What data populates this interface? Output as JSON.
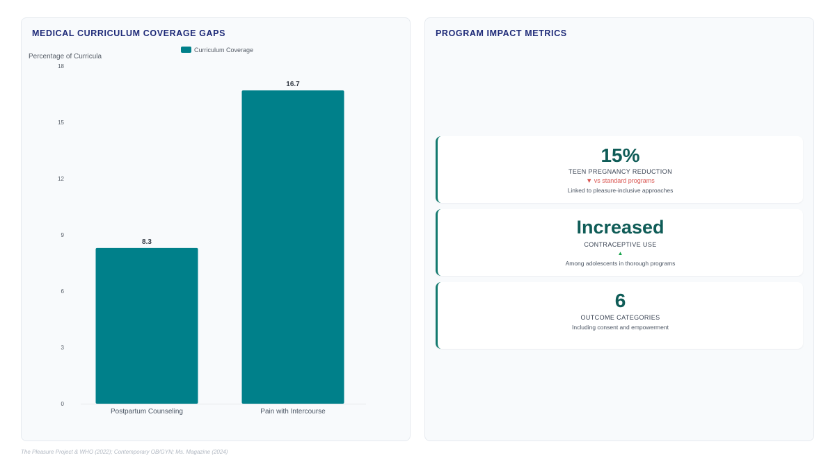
{
  "left_panel": {
    "title": "MEDICAL CURRICULUM COVERAGE GAPS"
  },
  "right_panel": {
    "title": "PROGRAM IMPACT METRICS",
    "cards": [
      {
        "value": "15%",
        "label": "TEEN PREGNANCY REDUCTION",
        "trend_icon": "▼",
        "trend_text": "vs standard programs",
        "trend_direction": "down",
        "note": "Linked to pleasure-inclusive approaches"
      },
      {
        "value": "Increased",
        "label": "CONTRACEPTIVE USE",
        "trend_icon": "▲",
        "trend_text": "",
        "trend_direction": "up",
        "note": "Among adolescents in thorough programs"
      },
      {
        "value": "6",
        "label": "OUTCOME CATEGORIES",
        "note": "Including consent and empowerment"
      }
    ]
  },
  "footer": {
    "source": "The Pleasure Project & WHO (2022); Contemporary OB/GYN; Ms. Magazine (2024)"
  },
  "colors": {
    "bar": "#00808a",
    "title": "#1e2a78",
    "metric_value": "#0f5c57",
    "trend_down": "#d9534f",
    "trend_up": "#16a34a"
  },
  "chart_data": {
    "type": "bar",
    "categories": [
      "Postpartum Counseling",
      "Pain with Intercourse"
    ],
    "series": [
      {
        "name": "Curriculum Coverage",
        "values": [
          8.3,
          16.7
        ],
        "color": "#00808a"
      }
    ],
    "value_labels": [
      "8.3",
      "16.7"
    ],
    "ylabel": "Percentage of Curricula",
    "xlabel": "",
    "ylim": [
      0,
      18
    ],
    "yticks": [
      0,
      3,
      6,
      9,
      12,
      15,
      18
    ],
    "grid": false,
    "legend": "top-center"
  }
}
